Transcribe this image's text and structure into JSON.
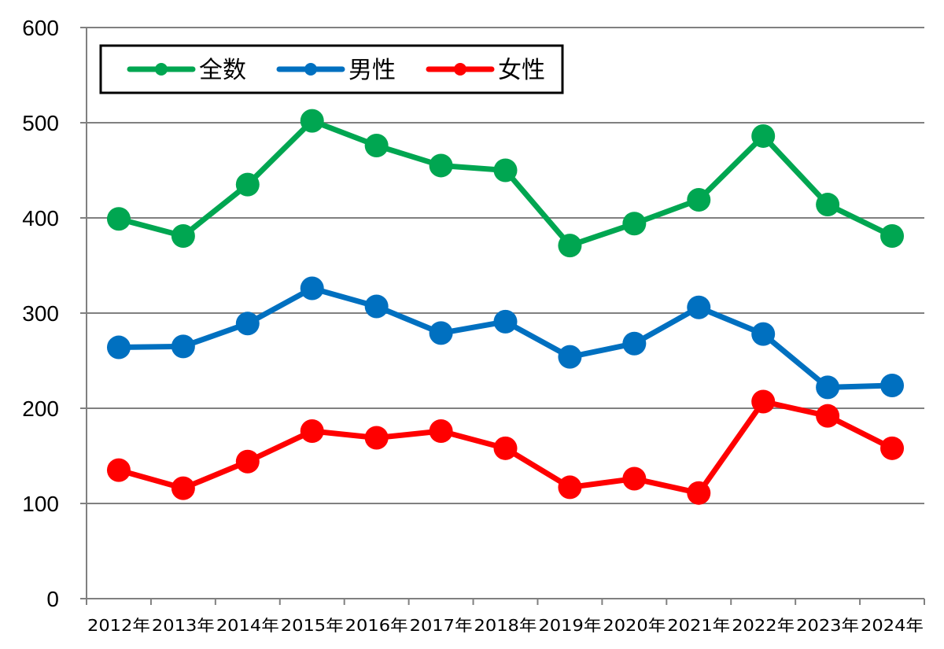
{
  "chart_data": {
    "type": "line",
    "title": "",
    "xlabel": "",
    "ylabel": "",
    "ylim": [
      0,
      600
    ],
    "yticks": [
      0,
      100,
      200,
      300,
      400,
      500,
      600
    ],
    "ytick_labels": [
      "0",
      "100",
      "200",
      "300",
      "400",
      "500",
      "600"
    ],
    "grid": true,
    "legend_position": "top-left",
    "categories": [
      "2012年",
      "2013年",
      "2014年",
      "2015年",
      "2016年",
      "2017年",
      "2018年",
      "2019年",
      "2020年",
      "2021年",
      "2022年",
      "2023年",
      "2024年"
    ],
    "series": [
      {
        "name": "全数",
        "color": "#00a651",
        "values": [
          399,
          381,
          435,
          502,
          476,
          455,
          450,
          371,
          394,
          419,
          486,
          414,
          381
        ]
      },
      {
        "name": "男性",
        "color": "#0070c0",
        "values": [
          264,
          265,
          289,
          326,
          307,
          279,
          291,
          254,
          268,
          306,
          278,
          222,
          224
        ]
      },
      {
        "name": "女性",
        "color": "#ff0000",
        "values": [
          135,
          116,
          144,
          176,
          169,
          176,
          158,
          117,
          126,
          111,
          207,
          192,
          158
        ]
      }
    ]
  }
}
